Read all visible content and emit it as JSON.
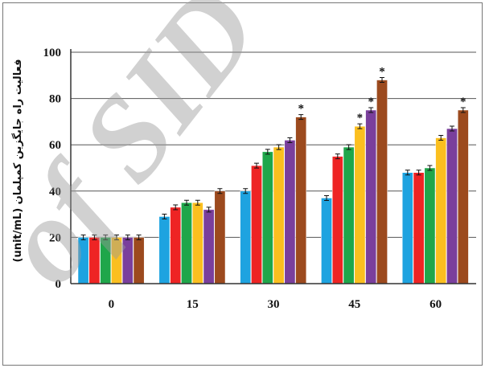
{
  "chart_data": {
    "type": "bar",
    "title": "",
    "xlabel": "",
    "ylabel": "فعالیت راه جایگزین کمپلمان (unit/mL)",
    "ylim": [
      0,
      100
    ],
    "yticks": [
      0,
      20,
      40,
      60,
      80,
      100
    ],
    "grid": true,
    "categories": [
      "0",
      "15",
      "30",
      "45",
      "60"
    ],
    "series": [
      {
        "color": "#1ea3e0",
        "values": [
          20,
          29,
          40,
          37,
          48
        ]
      },
      {
        "color": "#ee2424",
        "values": [
          20,
          33,
          51,
          55,
          48
        ]
      },
      {
        "color": "#1fa64a",
        "values": [
          20,
          35,
          57,
          59,
          50
        ]
      },
      {
        "color": "#fbbf1f",
        "values": [
          20,
          35,
          59,
          68,
          63
        ]
      },
      {
        "color": "#7a3f9c",
        "values": [
          20,
          32,
          62,
          75,
          67
        ]
      },
      {
        "color": "#9c4a1e",
        "values": [
          20,
          40,
          72,
          88,
          75
        ]
      }
    ],
    "significance_marker": "*",
    "significant": [
      [
        false,
        false,
        false,
        false,
        false
      ],
      [
        false,
        false,
        false,
        false,
        false
      ],
      [
        false,
        false,
        false,
        false,
        false
      ],
      [
        false,
        false,
        false,
        true,
        false
      ],
      [
        false,
        false,
        false,
        true,
        false
      ],
      [
        false,
        false,
        true,
        true,
        true
      ]
    ]
  },
  "watermark": "of SID"
}
